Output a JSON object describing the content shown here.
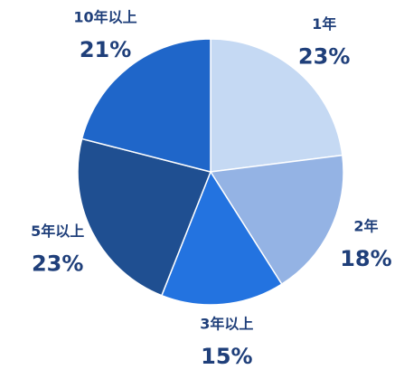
{
  "chart_data": {
    "type": "pie",
    "categories": [
      "1年",
      "2年",
      "3年以上",
      "5年以上",
      "10年以上"
    ],
    "values": [
      23,
      18,
      15,
      23,
      21
    ],
    "value_labels": [
      "23%",
      "18%",
      "15%",
      "23%",
      "21%"
    ],
    "colors": [
      "#c5d9f3",
      "#94b3e4",
      "#2373e0",
      "#1f4f91",
      "#1f66c9"
    ]
  }
}
